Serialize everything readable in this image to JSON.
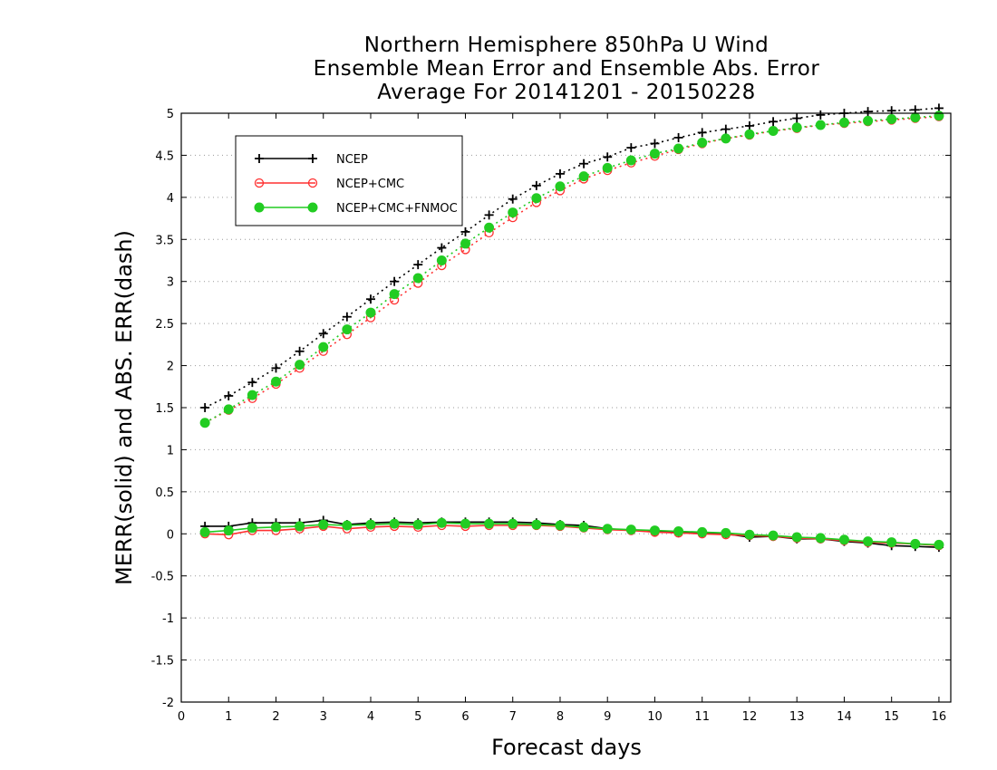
{
  "chart_data": {
    "type": "line",
    "title_lines": [
      "Northern Hemisphere 850hPa U Wind",
      "Ensemble Mean Error and Ensemble Abs. Error",
      "Average For 20141201 - 20150228"
    ],
    "xlabel": "Forecast days",
    "ylabel": "MERR(solid) and ABS. ERR(dash)",
    "xlim": [
      0,
      16.25
    ],
    "ylim": [
      -2,
      5
    ],
    "x_ticks": [
      0,
      1,
      2,
      3,
      4,
      5,
      6,
      7,
      8,
      9,
      10,
      11,
      12,
      13,
      14,
      15,
      16
    ],
    "y_ticks": [
      -2,
      -1.5,
      -1,
      -0.5,
      0,
      0.5,
      1,
      1.5,
      2,
      2.5,
      3,
      3.5,
      4,
      4.5,
      5
    ],
    "y_tick_labels": [
      "-2",
      "-1.5",
      "-1",
      "-0.5",
      "0",
      "0.5",
      "1",
      "1.5",
      "2",
      "2.5",
      "3",
      "3.5",
      "4",
      "4.5",
      "5"
    ],
    "grid": "horizontal dotted",
    "legend_position": "top-left",
    "x": [
      0.5,
      1,
      1.5,
      2,
      2.5,
      3,
      3.5,
      4,
      4.5,
      5,
      5.5,
      6,
      6.5,
      7,
      7.5,
      8,
      8.5,
      9,
      9.5,
      10,
      10.5,
      11,
      11.5,
      12,
      12.5,
      13,
      13.5,
      14,
      14.5,
      15,
      15.5,
      16
    ],
    "series": [
      {
        "name": "NCEP",
        "color": "#000000",
        "marker": "plus",
        "mean_error": [
          0.09,
          0.09,
          0.13,
          0.13,
          0.13,
          0.16,
          0.11,
          0.13,
          0.14,
          0.13,
          0.14,
          0.14,
          0.14,
          0.14,
          0.13,
          0.11,
          0.1,
          0.06,
          0.04,
          0.03,
          0.02,
          0.01,
          0.0,
          -0.04,
          -0.03,
          -0.06,
          -0.06,
          -0.09,
          -0.11,
          -0.14,
          -0.15,
          -0.16
        ],
        "abs_error": [
          1.5,
          1.64,
          1.8,
          1.97,
          2.17,
          2.38,
          2.58,
          2.79,
          3.0,
          3.2,
          3.4,
          3.59,
          3.79,
          3.98,
          4.14,
          4.28,
          4.4,
          4.48,
          4.59,
          4.64,
          4.71,
          4.77,
          4.81,
          4.85,
          4.9,
          4.94,
          4.98,
          5.0,
          5.02,
          5.03,
          5.04,
          5.06
        ]
      },
      {
        "name": "NCEP+CMC",
        "color": "#ff3030",
        "marker": "open-circle",
        "mean_error": [
          0.0,
          -0.01,
          0.04,
          0.04,
          0.06,
          0.09,
          0.06,
          0.08,
          0.09,
          0.08,
          0.1,
          0.09,
          0.1,
          0.1,
          0.1,
          0.09,
          0.07,
          0.05,
          0.04,
          0.02,
          0.01,
          0.0,
          -0.01,
          -0.02,
          -0.03,
          -0.05,
          -0.06,
          -0.08,
          -0.1,
          -0.11,
          -0.12,
          -0.14
        ],
        "abs_error": [
          1.32,
          1.47,
          1.61,
          1.78,
          1.97,
          2.17,
          2.37,
          2.57,
          2.78,
          2.98,
          3.19,
          3.38,
          3.58,
          3.76,
          3.94,
          4.08,
          4.22,
          4.32,
          4.41,
          4.49,
          4.57,
          4.64,
          4.7,
          4.74,
          4.79,
          4.82,
          4.86,
          4.88,
          4.9,
          4.92,
          4.94,
          4.96
        ]
      },
      {
        "name": "NCEP+CMC+FNMOC",
        "color": "#22cc22",
        "marker": "filled-circle",
        "mean_error": [
          0.02,
          0.04,
          0.07,
          0.08,
          0.09,
          0.11,
          0.1,
          0.11,
          0.12,
          0.11,
          0.13,
          0.12,
          0.12,
          0.12,
          0.11,
          0.1,
          0.08,
          0.06,
          0.05,
          0.04,
          0.03,
          0.02,
          0.01,
          -0.01,
          -0.02,
          -0.04,
          -0.05,
          -0.07,
          -0.09,
          -0.1,
          -0.12,
          -0.13
        ],
        "abs_error": [
          1.32,
          1.48,
          1.65,
          1.81,
          2.01,
          2.22,
          2.43,
          2.63,
          2.85,
          3.04,
          3.25,
          3.45,
          3.64,
          3.82,
          3.99,
          4.13,
          4.25,
          4.35,
          4.44,
          4.52,
          4.58,
          4.65,
          4.7,
          4.75,
          4.79,
          4.83,
          4.86,
          4.89,
          4.91,
          4.93,
          4.95,
          4.97
        ]
      }
    ]
  }
}
